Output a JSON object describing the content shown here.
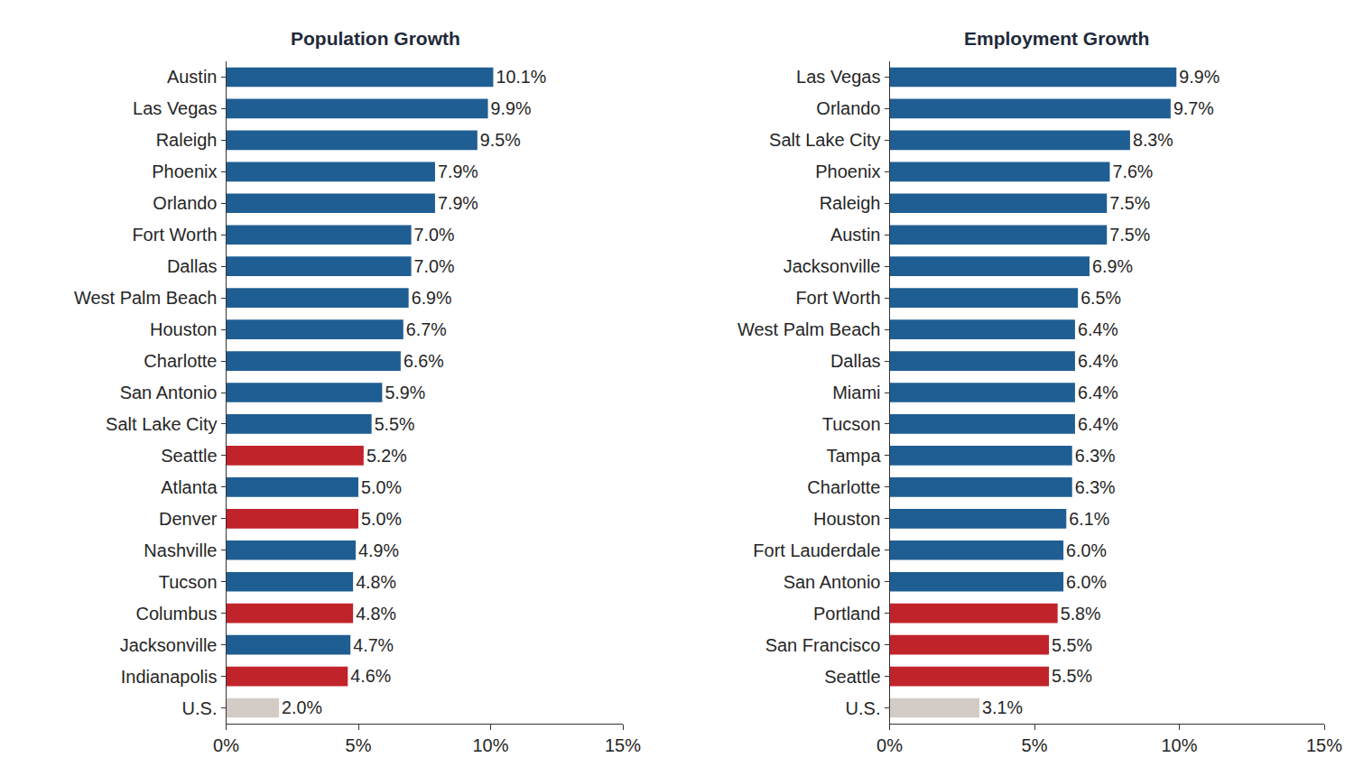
{
  "chart_data": [
    {
      "type": "bar",
      "title": "Population Growth",
      "orientation": "horizontal",
      "categories": [
        "Austin",
        "Las Vegas",
        "Raleigh",
        "Phoenix",
        "Orlando",
        "Fort Worth",
        "Dallas",
        "West Palm Beach",
        "Houston",
        "Charlotte",
        "San Antonio",
        "Salt Lake City",
        "Seattle",
        "Atlanta",
        "Denver",
        "Nashville",
        "Tucson",
        "Columbus",
        "Jacksonville",
        "Indianapolis",
        "U.S."
      ],
      "values": [
        10.1,
        9.9,
        9.5,
        7.9,
        7.9,
        7.0,
        7.0,
        6.9,
        6.7,
        6.6,
        5.9,
        5.5,
        5.2,
        5.0,
        5.0,
        4.9,
        4.8,
        4.8,
        4.7,
        4.6,
        2.0
      ],
      "value_labels": [
        "10.1%",
        "9.9%",
        "9.5%",
        "7.9%",
        "7.9%",
        "7.0%",
        "7.0%",
        "6.9%",
        "6.7%",
        "6.6%",
        "5.9%",
        "5.5%",
        "5.2%",
        "5.0%",
        "5.0%",
        "4.9%",
        "4.8%",
        "4.8%",
        "4.7%",
        "4.6%",
        "2.0%"
      ],
      "colors": [
        "#1f5e93",
        "#1f5e93",
        "#1f5e93",
        "#1f5e93",
        "#1f5e93",
        "#1f5e93",
        "#1f5e93",
        "#1f5e93",
        "#1f5e93",
        "#1f5e93",
        "#1f5e93",
        "#1f5e93",
        "#c1232b",
        "#1f5e93",
        "#c1232b",
        "#1f5e93",
        "#1f5e93",
        "#c1232b",
        "#1f5e93",
        "#c1232b",
        "#d3cbc6"
      ],
      "data_labels": true,
      "grid": false,
      "xlim": [
        0,
        15
      ],
      "xticks": [
        {
          "value": 0,
          "label": "0%"
        },
        {
          "value": 5,
          "label": "5%"
        },
        {
          "value": 10,
          "label": "10%"
        },
        {
          "value": 15,
          "label": "15%"
        }
      ]
    },
    {
      "type": "bar",
      "title": "Employment Growth",
      "orientation": "horizontal",
      "categories": [
        "Las Vegas",
        "Orlando",
        "Salt Lake City",
        "Phoenix",
        "Raleigh",
        "Austin",
        "Jacksonville",
        "Fort Worth",
        "West Palm Beach",
        "Dallas",
        "Miami",
        "Tucson",
        "Tampa",
        "Charlotte",
        "Houston",
        "Fort Lauderdale",
        "San Antonio",
        "Portland",
        "San Francisco",
        "Seattle",
        "U.S."
      ],
      "values": [
        9.9,
        9.7,
        8.3,
        7.6,
        7.5,
        7.5,
        6.9,
        6.5,
        6.4,
        6.4,
        6.4,
        6.4,
        6.3,
        6.3,
        6.1,
        6.0,
        6.0,
        5.8,
        5.5,
        5.5,
        3.1
      ],
      "value_labels": [
        "9.9%",
        "9.7%",
        "8.3%",
        "7.6%",
        "7.5%",
        "7.5%",
        "6.9%",
        "6.5%",
        "6.4%",
        "6.4%",
        "6.4%",
        "6.4%",
        "6.3%",
        "6.3%",
        "6.1%",
        "6.0%",
        "6.0%",
        "5.8%",
        "5.5%",
        "5.5%",
        "3.1%"
      ],
      "colors": [
        "#1f5e93",
        "#1f5e93",
        "#1f5e93",
        "#1f5e93",
        "#1f5e93",
        "#1f5e93",
        "#1f5e93",
        "#1f5e93",
        "#1f5e93",
        "#1f5e93",
        "#1f5e93",
        "#1f5e93",
        "#1f5e93",
        "#1f5e93",
        "#1f5e93",
        "#1f5e93",
        "#1f5e93",
        "#c1232b",
        "#c1232b",
        "#c1232b",
        "#d3cbc6"
      ],
      "data_labels": true,
      "grid": false,
      "xlim": [
        0,
        15
      ],
      "xticks": [
        {
          "value": 0,
          "label": "0%"
        },
        {
          "value": 5,
          "label": "5%"
        },
        {
          "value": 10,
          "label": "10%"
        },
        {
          "value": 15,
          "label": "15%"
        }
      ]
    }
  ]
}
